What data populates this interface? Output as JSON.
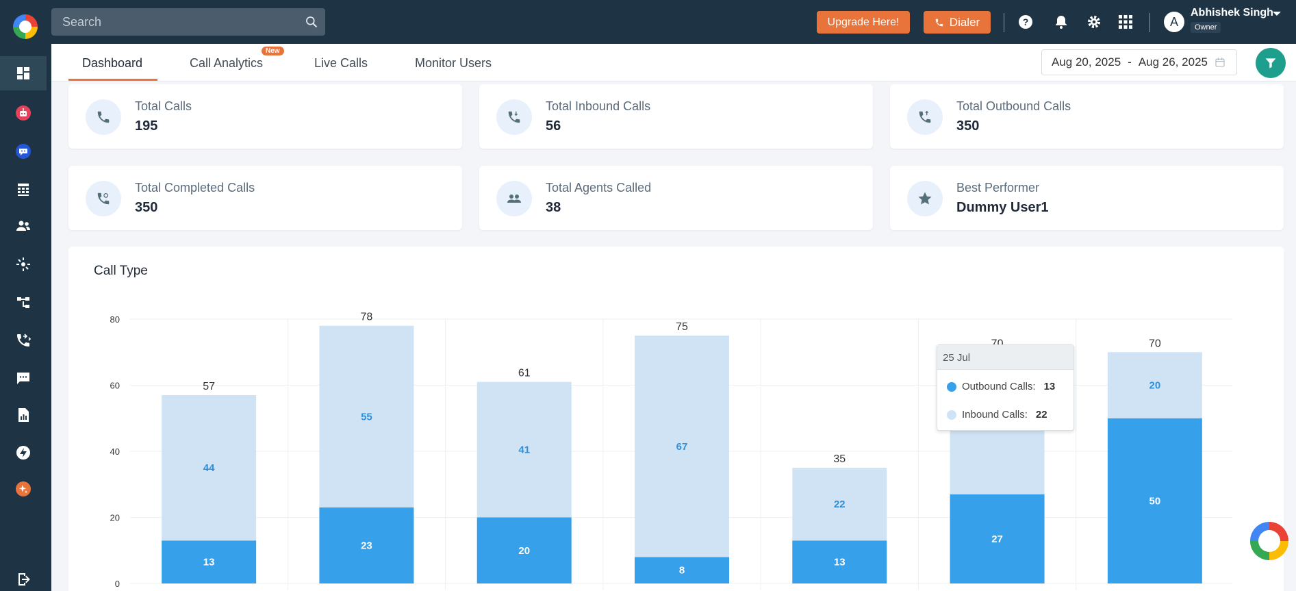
{
  "search": {
    "placeholder": "Search"
  },
  "header": {
    "upgrade_label": "Upgrade Here!",
    "dialer_label": "Dialer",
    "user": {
      "initial": "A",
      "name": "Abhishek Singh",
      "role": "Owner"
    }
  },
  "tabs": [
    {
      "label": "Dashboard"
    },
    {
      "label": "Call Analytics",
      "badge": "New"
    },
    {
      "label": "Live Calls"
    },
    {
      "label": "Monitor Users"
    }
  ],
  "date_range": {
    "start": "Aug 20, 2025",
    "separator": "-",
    "end": "Aug 26, 2025"
  },
  "stats": [
    {
      "label": "Total Calls",
      "value": "195",
      "icon": "phone-icon"
    },
    {
      "label": "Total Inbound Calls",
      "value": "56",
      "icon": "phone-inbound-icon"
    },
    {
      "label": "Total Outbound Calls",
      "value": "350",
      "icon": "phone-outbound-icon"
    },
    {
      "label": "Total Completed Calls",
      "value": "350",
      "icon": "phone-completed-icon"
    },
    {
      "label": "Total Agents Called",
      "value": "38",
      "icon": "people-icon"
    },
    {
      "label": "Best Performer",
      "value": "Dummy User1",
      "icon": "star-icon"
    }
  ],
  "chart_title": "Call Type",
  "chart_data": {
    "type": "bar",
    "stacked": true,
    "title": "Call Type",
    "ylim": [
      0,
      80
    ],
    "yticks": [
      0,
      20,
      40,
      60,
      80
    ],
    "series": [
      {
        "name": "Outbound Calls",
        "color": "#37a0ea",
        "values": [
          13,
          23,
          20,
          8,
          13,
          27,
          50
        ]
      },
      {
        "name": "Inbound Calls",
        "color": "#cfe3f5",
        "values": [
          44,
          55,
          41,
          67,
          22,
          43,
          20
        ]
      }
    ],
    "totals": [
      57,
      78,
      61,
      75,
      35,
      70,
      70
    ],
    "grid": true
  },
  "tooltip": {
    "title": "25 Jul",
    "rows": [
      {
        "label": "Outbound Calls:",
        "value": "13",
        "color": "#37a0ea"
      },
      {
        "label": "Inbound Calls:",
        "value": "22",
        "color": "#cfe3f5"
      }
    ]
  },
  "colors": {
    "accent": "#e8743b",
    "nav": "#1e3344",
    "filter": "#1e9e8d"
  }
}
